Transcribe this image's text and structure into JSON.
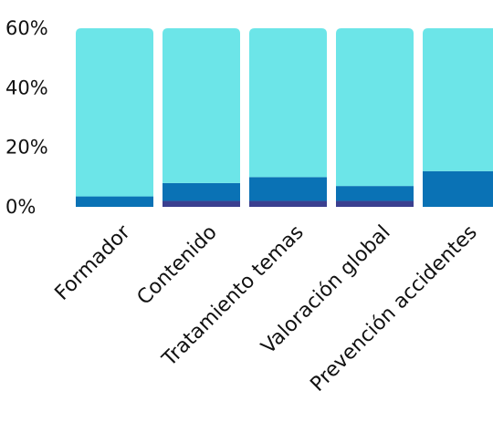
{
  "chart_data": {
    "type": "bar",
    "stacked": true,
    "categories": [
      "Formador",
      "Contenido",
      "Tratamiento temas",
      "Valoración global",
      "Prevención accidentes"
    ],
    "series": [
      {
        "values": [
          0,
          2,
          2,
          2,
          0
        ],
        "color": "#3b3f8f"
      },
      {
        "values": [
          3.5,
          6,
          8,
          5,
          12
        ],
        "color": "#0a72b5"
      },
      {
        "values": [
          56.5,
          52,
          50,
          53,
          48
        ],
        "color": "#6ce5e8"
      }
    ],
    "ylim": [
      0,
      60
    ],
    "yticks": [
      0,
      20,
      40,
      60
    ],
    "ytick_labels": [
      "0%",
      "20%",
      "40%",
      "60%"
    ],
    "grid": false,
    "legend": "none"
  }
}
